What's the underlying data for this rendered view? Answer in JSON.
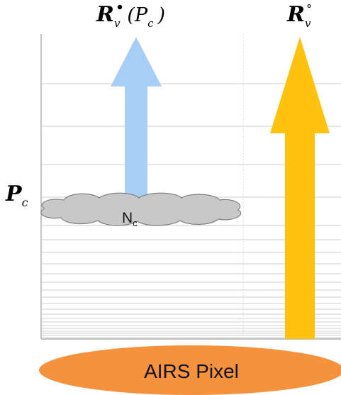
{
  "labels": {
    "cloudy_radiance_main": "R",
    "cloudy_radiance_sub": "v",
    "cloudy_radiance_args": "(P",
    "cloudy_radiance_arg_sub": "c",
    "cloudy_radiance_close": ")",
    "clear_radiance_main": "R",
    "clear_radiance_sub": "v",
    "clear_radiance_sup": "°",
    "pressure_main": "P",
    "pressure_sub": "c",
    "cloud_fraction_main": "N",
    "cloud_fraction_sub": "c",
    "pixel_label": "AIRS Pixel"
  },
  "colors": {
    "cloudy_arrow": "#a8cdf7",
    "clear_arrow": "#ffc20e",
    "cloud_fill": "#c8c8c8",
    "pixel_fill": "#f5923e",
    "grid_line": "#cfcfcf",
    "frame_line": "#9a9a9a"
  }
}
